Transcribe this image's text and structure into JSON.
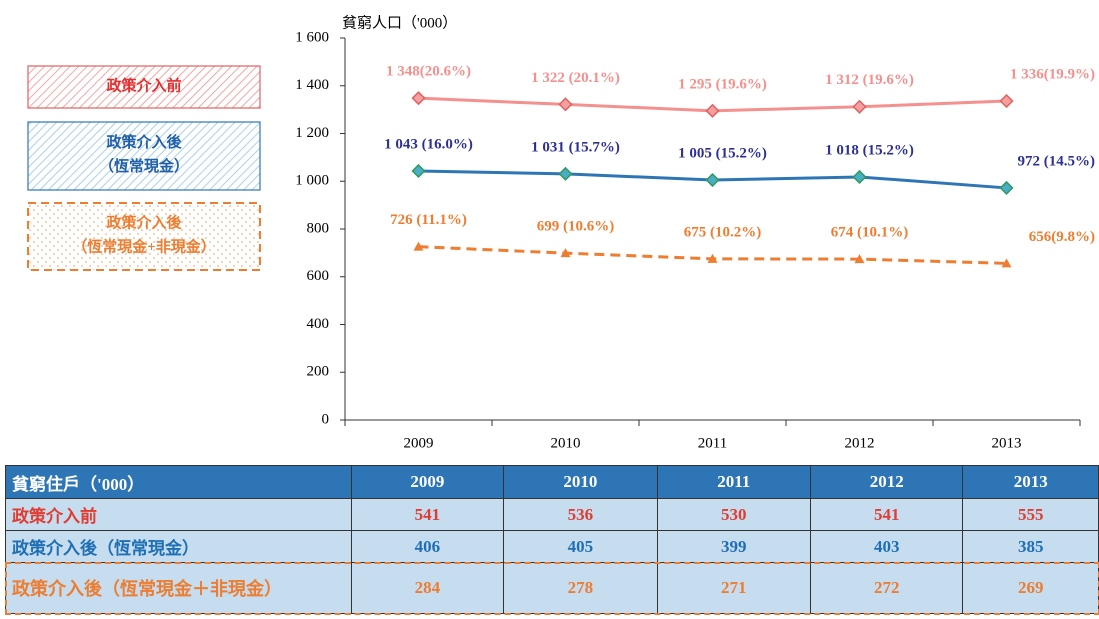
{
  "chart_data": {
    "type": "line",
    "y_axis_label": "貧窮人口（'000）",
    "categories": [
      "2009",
      "2010",
      "2011",
      "2012",
      "2013"
    ],
    "ylim": [
      0,
      1600
    ],
    "yticks": [
      0,
      200,
      400,
      600,
      800,
      {
        "value": 1000,
        "label": "1 000"
      },
      {
        "value": 1200,
        "label": "1 200"
      },
      {
        "value": 1400,
        "label": "1 400"
      },
      {
        "value": 1600,
        "label": "1 600"
      }
    ],
    "series": [
      {
        "name": "政策介入前",
        "color": "#f4908e",
        "marker": "diamond",
        "dashed": false,
        "values": [
          1348,
          1322,
          1295,
          1312,
          1336
        ],
        "value_labels": [
          "1 348(20.6%)",
          "1 322 (20.1%)",
          "1 295 (19.6%)",
          "1 312 (19.6%)",
          "1 336(19.9%)"
        ]
      },
      {
        "name": "政策介入後\n（恆常現金）",
        "color": "#2e75b6",
        "marker": "diamond",
        "dashed": false,
        "values": [
          1043,
          1031,
          1005,
          1018,
          972
        ],
        "value_labels": [
          "1 043 (16.0%)",
          "1 031 (15.7%)",
          "1 005 (15.2%)",
          "1 018 (15.2%)",
          "972 (14.5%)"
        ]
      },
      {
        "name": "政策介入後\n（恆常現金+非現金）",
        "color": "#ed7d31",
        "marker": "triangle",
        "dashed": true,
        "values": [
          726,
          699,
          675,
          674,
          656
        ],
        "value_labels": [
          "726 (11.1%)",
          "699 (10.6%)",
          "675 (10.2%)",
          "674 (10.1%)",
          "656(9.8%)"
        ]
      }
    ]
  },
  "table": {
    "header": [
      "貧窮住戶（'000）",
      "2009",
      "2010",
      "2011",
      "2012",
      "2013"
    ],
    "rows": [
      [
        "政策介入前",
        "541",
        "536",
        "530",
        "541",
        "555"
      ],
      [
        "政策介入後（恆常現金）",
        "406",
        "405",
        "399",
        "403",
        "385"
      ],
      [
        "政策介入後（恆常現金＋非現金）",
        "284",
        "278",
        "271",
        "272",
        "269"
      ]
    ]
  }
}
